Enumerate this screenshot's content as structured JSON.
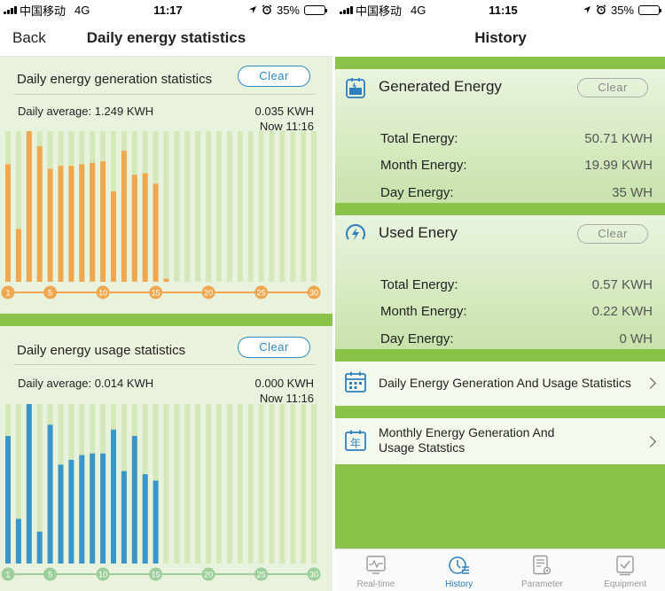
{
  "left": {
    "status": {
      "carrier": "中国移动",
      "network": "4G",
      "time": "11:17",
      "battery": "35%",
      "battery_level": 0.35
    },
    "nav": {
      "back": "Back",
      "title": "Daily energy statistics"
    },
    "generation": {
      "title": "Daily energy generation statistics",
      "clear": "Clear",
      "average": "Daily average: 1.249 KWH",
      "current_value": "0.035 KWH",
      "current_time": "Now 11:16",
      "bar_color": "#f0a850",
      "axis_color": "#f0a850",
      "day_labels": [
        "1",
        "5",
        "10",
        "15",
        "20",
        "25",
        "30"
      ],
      "days_in_month": 30,
      "values": [
        0.78,
        0.35,
        1.0,
        0.9,
        0.75,
        0.77,
        0.77,
        0.78,
        0.79,
        0.8,
        0.6,
        0.87,
        0.71,
        0.72,
        0.65,
        0.02
      ]
    },
    "usage": {
      "title": "Daily energy usage statistics",
      "clear": "Clear",
      "average": "Daily average: 0.014 KWH",
      "current_value": "0.000 KWH",
      "current_time": "Now 11:16",
      "bar_color": "#3a96c8",
      "axis_color": "#9ccf9c",
      "day_labels": [
        "1",
        "5",
        "10",
        "15",
        "20",
        "25",
        "30"
      ],
      "days_in_month": 30,
      "values": [
        0.8,
        0.28,
        1.0,
        0.2,
        0.87,
        0.62,
        0.65,
        0.68,
        0.69,
        0.69,
        0.84,
        0.58,
        0.8,
        0.56,
        0.52
      ]
    }
  },
  "right": {
    "status": {
      "carrier": "中国移动",
      "network": "4G",
      "time": "11:15",
      "battery": "35%",
      "battery_level": 0.35
    },
    "title": "History",
    "generated": {
      "label": "Generated Energy",
      "clear": "Clear",
      "rows": [
        {
          "k": "Total Energy:",
          "v": "50.71 KWH"
        },
        {
          "k": "Month Energy:",
          "v": "19.99 KWH"
        },
        {
          "k": "Day Energy:",
          "v": "35 WH"
        }
      ]
    },
    "used": {
      "label": "Used Enery",
      "clear": "Clear",
      "rows": [
        {
          "k": "Total Energy:",
          "v": "0.57 KWH"
        },
        {
          "k": "Month Energy:",
          "v": "0.22 KWH"
        },
        {
          "k": "Day Energy:",
          "v": "0 WH"
        }
      ]
    },
    "links": {
      "daily": "Daily Energy Generation And Usage Statistics",
      "monthly": "Monthly Energy Generation And Usage Statstics",
      "monthly_icon_char": "年"
    },
    "tabs": [
      {
        "label": "Real-time",
        "icon": "monitor-icon",
        "active": false
      },
      {
        "label": "History",
        "icon": "clock-list-icon",
        "active": true
      },
      {
        "label": "Parameter",
        "icon": "document-gear-icon",
        "active": false
      },
      {
        "label": "Equipment",
        "icon": "checkbox-icon",
        "active": false
      }
    ],
    "accent": "#2e7fbf",
    "green": "#8bc34a"
  }
}
